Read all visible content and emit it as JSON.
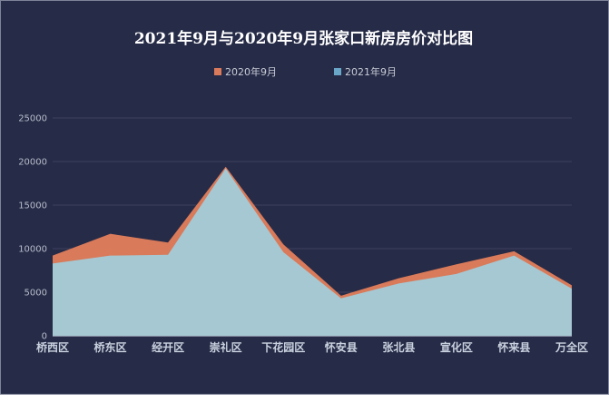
{
  "chart_data": {
    "type": "area",
    "title": "2021年9月与2020年9月张家口新房房价对比图",
    "categories": [
      "桥西区",
      "桥东区",
      "经开区",
      "崇礼区",
      "下花园区",
      "怀安县",
      "张北县",
      "宣化区",
      "怀来县",
      "万全区"
    ],
    "series": [
      {
        "name": "2020年9月",
        "color": "#d97a5a",
        "values": [
          9200,
          11700,
          10700,
          19400,
          10500,
          4600,
          6600,
          8200,
          9700,
          5800
        ]
      },
      {
        "name": "2021年9月",
        "color": "#a6c8d2",
        "legend_color": "#6aa6c8",
        "values": [
          8300,
          9200,
          9300,
          19200,
          9600,
          4300,
          6000,
          7100,
          9200,
          5400
        ]
      }
    ],
    "ylim": [
      0,
      25000
    ],
    "yticks": [
      0,
      5000,
      10000,
      15000,
      20000,
      25000
    ],
    "xlabel": "",
    "ylabel": "",
    "grid": true,
    "legend_position": "top"
  },
  "colors": {
    "background": "#262b47",
    "gridline": "#3d425c"
  }
}
